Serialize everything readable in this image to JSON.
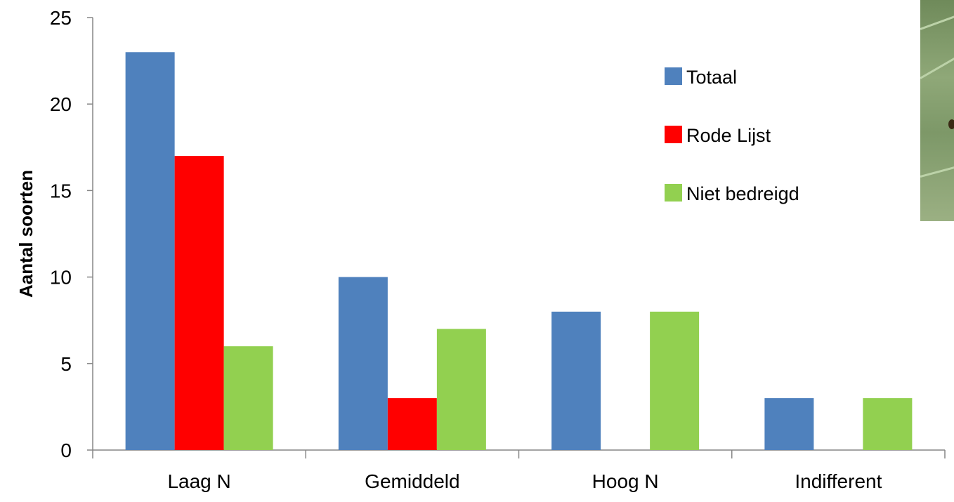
{
  "chart_data": {
    "type": "bar",
    "title": "",
    "xlabel": "",
    "ylabel": "Aantal soorten",
    "categories": [
      "Laag N",
      "Gemiddeld",
      "Hoog N",
      "Indifferent"
    ],
    "series": [
      {
        "name": "Totaal",
        "color": "#4f81bd",
        "values": [
          23,
          10,
          8,
          3
        ]
      },
      {
        "name": "Rode Lijst",
        "color": "#ff0000",
        "values": [
          17,
          3,
          0,
          0
        ]
      },
      {
        "name": "Niet bedreigd",
        "color": "#92d050",
        "values": [
          6,
          7,
          8,
          3
        ]
      }
    ],
    "ylim": [
      0,
      25
    ],
    "yticks": [
      0,
      5,
      10,
      15,
      20,
      25
    ],
    "grid": false,
    "legend_position": "top-right"
  },
  "photo_icon": "plant-photo"
}
